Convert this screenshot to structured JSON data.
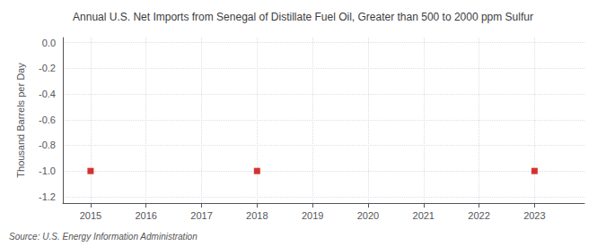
{
  "chart_data": {
    "type": "scatter",
    "title": "Annual U.S. Net Imports from Senegal of Distillate Fuel Oil, Greater than 500 to 2000 ppm Sulfur",
    "ylabel": "Thousand Barrels per Day",
    "source": "Source: U.S. Energy Information Administration",
    "x": [
      2015,
      2018,
      2023
    ],
    "values": [
      -1.0,
      -1.0,
      -1.0
    ],
    "color": "#cc0000",
    "marker": "square",
    "xlim": [
      2014.5,
      2023.9
    ],
    "xticks": [
      2015,
      2016,
      2017,
      2018,
      2019,
      2020,
      2021,
      2022,
      2023
    ],
    "ylim": [
      -1.25,
      0.04
    ],
    "yticks": [
      {
        "value": 0,
        "label": "0.0"
      },
      -0.2,
      -0.4,
      -0.6,
      -0.8,
      {
        "value": -1,
        "label": "-1.0"
      },
      -1.2
    ],
    "grid": true
  }
}
